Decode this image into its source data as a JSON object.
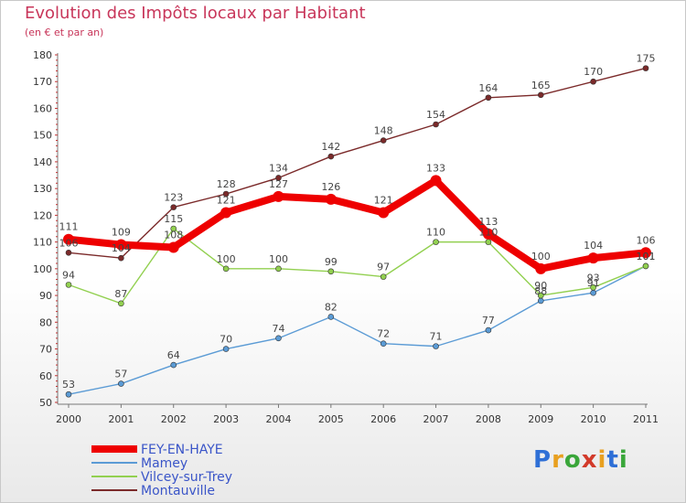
{
  "title": "Evolution des Impôts locaux par Habitant",
  "subtitle": "(en € et par an)",
  "logo": {
    "text": "Proxiti",
    "letters": [
      {
        "ch": "P",
        "color": "#2e6fd6"
      },
      {
        "ch": "r",
        "color": "#e8a020"
      },
      {
        "ch": "o",
        "color": "#3aa63a"
      },
      {
        "ch": "x",
        "color": "#d23a2a"
      },
      {
        "ch": "i",
        "color": "#e8a020"
      },
      {
        "ch": "t",
        "color": "#2e6fd6"
      },
      {
        "ch": "i",
        "color": "#3aa63a"
      }
    ]
  },
  "chart_data": {
    "type": "line",
    "title": "Evolution des Impôts locaux par Habitant",
    "subtitle": "(en € et par an)",
    "xlabel": "",
    "ylabel": "",
    "x": [
      "2000",
      "2001",
      "2002",
      "2003",
      "2004",
      "2005",
      "2006",
      "2007",
      "2008",
      "2009",
      "2010",
      "2011"
    ],
    "ylim": [
      50,
      180
    ],
    "yticks": [
      "50",
      "60",
      "70",
      "80",
      "90",
      "100",
      "110",
      "120",
      "130",
      "140",
      "150",
      "160",
      "170",
      "180"
    ],
    "grid": false,
    "legend_position": "bottom-left",
    "series": [
      {
        "name": "FEY-EN-HAYE",
        "color": "#ee0000",
        "values": [
          111,
          109,
          108,
          121,
          127,
          126,
          121,
          133,
          113,
          100,
          104,
          106
        ]
      },
      {
        "name": "Mamey",
        "color": "#5b9bd5",
        "values": [
          53,
          57,
          64,
          70,
          74,
          82,
          72,
          71,
          77,
          88,
          91,
          101
        ]
      },
      {
        "name": "Vilcey-sur-Trey",
        "color": "#92d050",
        "values": [
          94,
          87,
          115,
          100,
          100,
          99,
          97,
          110,
          110,
          90,
          93,
          101
        ]
      },
      {
        "name": "Montauville",
        "color": "#7b2a2a",
        "values": [
          106,
          104,
          123,
          128,
          134,
          142,
          148,
          154,
          164,
          165,
          170,
          175
        ]
      }
    ]
  }
}
